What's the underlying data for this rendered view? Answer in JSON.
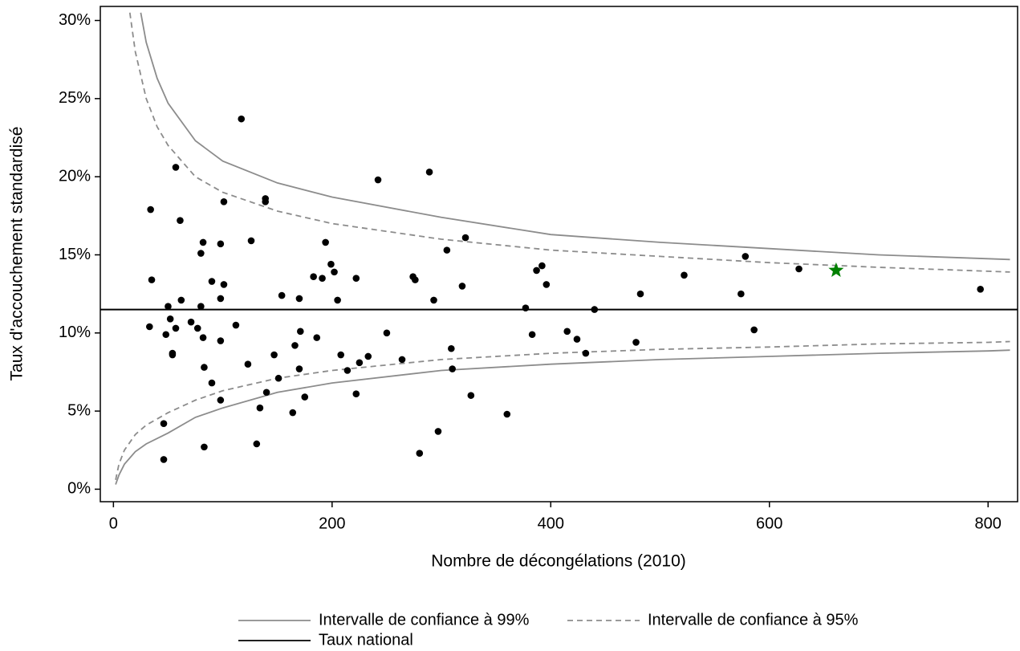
{
  "chart_data": {
    "type": "scatter",
    "x_label": "Nombre de décongélations (2010)",
    "y_label": "Taux d'accouchement standardisé",
    "xlim": [
      -12,
      827
    ],
    "ylim": [
      -0.8,
      30.9
    ],
    "xticks": [
      0,
      200,
      400,
      600,
      800
    ],
    "yticks": [
      {
        "value": 0,
        "label": "0%"
      },
      {
        "value": 5,
        "label": "5%"
      },
      {
        "value": 10,
        "label": "10%"
      },
      {
        "value": 15,
        "label": "15%"
      },
      {
        "value": 20,
        "label": "20%"
      },
      {
        "value": 25,
        "label": "25%"
      },
      {
        "value": 30,
        "label": "30%"
      }
    ],
    "points": {
      "color": "#000000",
      "x": [
        34,
        35,
        33,
        117,
        57,
        61,
        101,
        139,
        139,
        242,
        289,
        82,
        80,
        98,
        126,
        194,
        322,
        305,
        578,
        627,
        199,
        202,
        183,
        191,
        222,
        274,
        276,
        387,
        392,
        396,
        522,
        319,
        90,
        101,
        98,
        62,
        154,
        170,
        205,
        293,
        482,
        574,
        793,
        50,
        80,
        377,
        440,
        52,
        71,
        77,
        57,
        112,
        48,
        82,
        98,
        171,
        186,
        250,
        383,
        415,
        424,
        586,
        478,
        309,
        432,
        54,
        54,
        147,
        208,
        233,
        264,
        166,
        123,
        225,
        83,
        170,
        214,
        310,
        151,
        90,
        140,
        222,
        175,
        327,
        98,
        134,
        164,
        360,
        46,
        297,
        131,
        83,
        280,
        46
      ],
      "values": [
        17.9,
        13.4,
        10.4,
        23.7,
        20.6,
        17.2,
        18.4,
        18.6,
        18.4,
        19.8,
        20.3,
        15.8,
        15.1,
        15.7,
        15.9,
        15.8,
        16.1,
        15.3,
        14.9,
        14.1,
        14.4,
        13.9,
        13.6,
        13.5,
        13.5,
        13.6,
        13.4,
        14.0,
        14.3,
        13.1,
        13.7,
        13.0,
        13.3,
        13.1,
        12.2,
        12.1,
        12.4,
        12.2,
        12.1,
        12.1,
        12.5,
        12.5,
        12.8,
        11.7,
        11.7,
        11.6,
        11.5,
        10.9,
        10.7,
        10.3,
        10.3,
        10.5,
        9.9,
        9.7,
        9.5,
        10.1,
        9.7,
        10.0,
        9.9,
        10.1,
        9.6,
        10.2,
        9.4,
        9.0,
        8.7,
        8.7,
        8.6,
        8.6,
        8.6,
        8.5,
        8.3,
        9.2,
        8.0,
        8.1,
        7.8,
        7.7,
        7.6,
        7.7,
        7.1,
        6.8,
        6.2,
        6.1,
        5.9,
        6.0,
        5.7,
        5.2,
        4.9,
        4.8,
        4.2,
        3.7,
        2.9,
        2.7,
        2.3,
        1.9
      ]
    },
    "highlight": {
      "x": 661,
      "value": 14.0,
      "color": "#008000"
    },
    "reference": {
      "name": "Taux national",
      "value": 11.5,
      "color": "#000000"
    },
    "limits": [
      {
        "name": "Intervalle de confiance à 99%",
        "color": "#8c8c8c",
        "style": "solid",
        "upper": {
          "x": [
            25,
            30,
            40,
            50,
            75,
            100,
            150,
            200,
            300,
            400,
            500,
            600,
            700,
            800,
            820
          ],
          "values": [
            30.5,
            28.6,
            26.3,
            24.7,
            22.3,
            21.0,
            19.6,
            18.7,
            17.4,
            16.3,
            15.8,
            15.4,
            15.0,
            14.75,
            14.7
          ]
        },
        "lower": {
          "x": [
            2,
            5,
            10,
            20,
            30,
            50,
            75,
            100,
            150,
            200,
            300,
            400,
            500,
            600,
            700,
            800,
            820
          ],
          "values": [
            0.3,
            0.9,
            1.6,
            2.4,
            2.9,
            3.6,
            4.6,
            5.2,
            6.2,
            6.8,
            7.6,
            8.0,
            8.3,
            8.5,
            8.7,
            8.85,
            8.9
          ]
        }
      },
      {
        "name": "Intervalle de confiance à 95%",
        "color": "#8c8c8c",
        "style": "dashed",
        "upper": {
          "x": [
            15,
            20,
            30,
            40,
            50,
            75,
            100,
            150,
            200,
            300,
            400,
            500,
            600,
            700,
            800,
            820
          ],
          "values": [
            30.5,
            28.0,
            25.0,
            23.2,
            22.0,
            20.0,
            19.0,
            17.8,
            17.0,
            16.0,
            15.3,
            14.9,
            14.5,
            14.2,
            13.95,
            13.9
          ]
        },
        "lower": {
          "x": [
            2,
            5,
            10,
            20,
            30,
            50,
            75,
            100,
            150,
            200,
            300,
            400,
            500,
            600,
            700,
            800,
            820
          ],
          "values": [
            0.6,
            1.6,
            2.5,
            3.5,
            4.1,
            4.9,
            5.7,
            6.3,
            7.1,
            7.6,
            8.3,
            8.7,
            8.95,
            9.1,
            9.3,
            9.4,
            9.45
          ]
        }
      }
    ]
  }
}
